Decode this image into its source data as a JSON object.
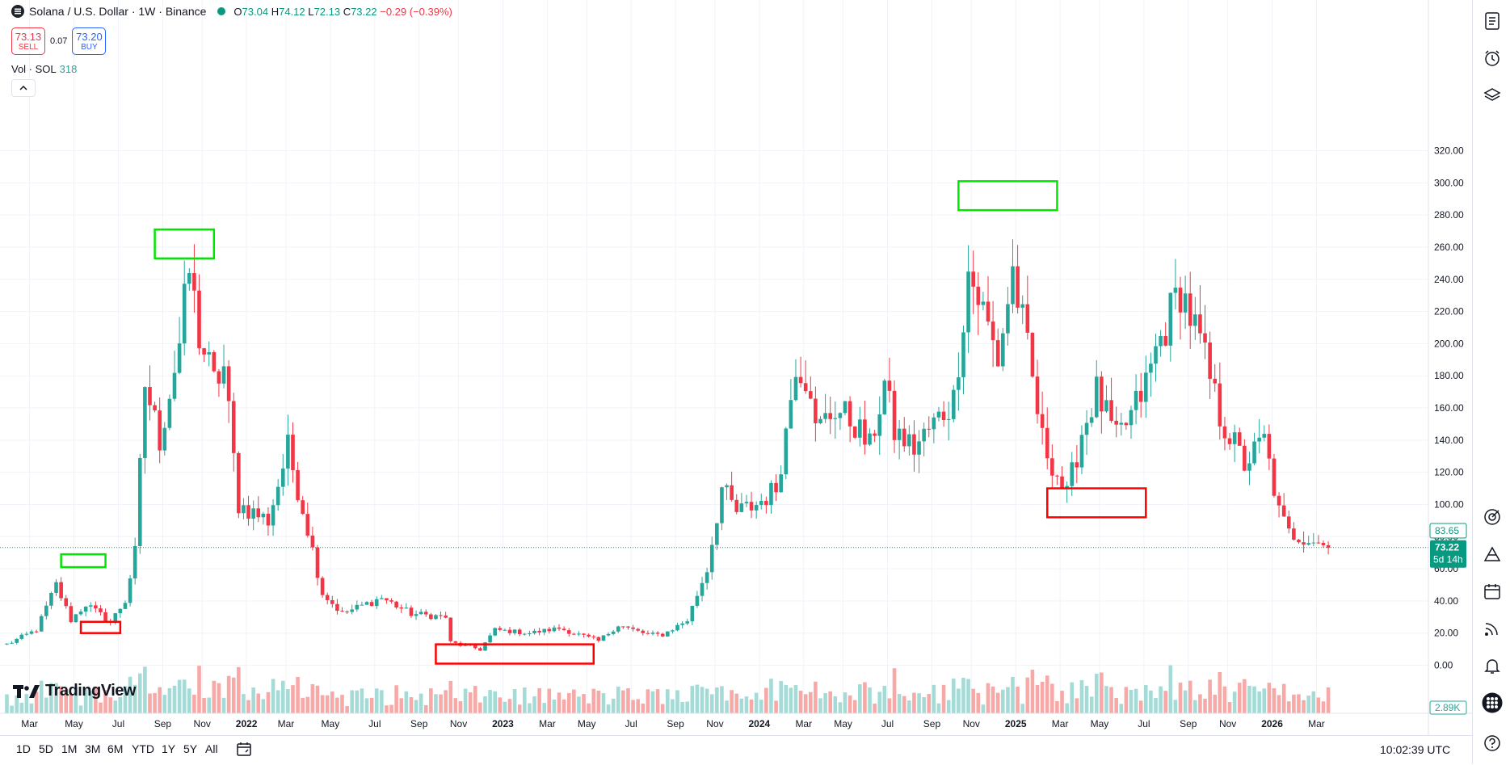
{
  "header": {
    "symbol": "Solana / U.S. Dollar · 1W · Binance",
    "open_label": "O",
    "open": "73.04",
    "high_label": "H",
    "high": "74.12",
    "low_label": "L",
    "low": "72.13",
    "close_label": "C",
    "close": "73.22",
    "change": "−0.29 (−0.39%)"
  },
  "trade": {
    "sell_price": "73.13",
    "sell_label": "SELL",
    "spread": "0.07",
    "buy_price": "73.20",
    "buy_label": "BUY"
  },
  "volume": {
    "label": "Vol · SOL",
    "value": "318"
  },
  "logo": {
    "text": "TradingView"
  },
  "price_tags": {
    "last_close": "73.22",
    "countdown": "5d 14h",
    "marker": "83.65",
    "volume": "2.89K"
  },
  "bottom_bar": {
    "ranges": [
      "1D",
      "5D",
      "1M",
      "3M",
      "6M",
      "YTD",
      "1Y",
      "5Y",
      "All"
    ],
    "clock": "10:02:39 UTC"
  },
  "colors": {
    "up": "#26a69a",
    "down": "#f23645",
    "box_green": "#00e600",
    "box_red": "#ff0000"
  },
  "icons": [
    "symbol-icon",
    "watchlist-icon",
    "alerts-clock-icon",
    "layers-icon",
    "target-icon",
    "pyramid-icon",
    "calendar-icon",
    "signal-icon",
    "bell-icon",
    "grid-apps-icon",
    "help-icon",
    "settings-icon"
  ],
  "chart_data": {
    "type": "candlestick",
    "interval": "1W",
    "ylim": [
      0,
      320
    ],
    "y_ticks": [
      "0.00",
      "20.00",
      "40.00",
      "60.00",
      "80.00",
      "100.00",
      "120.00",
      "140.00",
      "160.00",
      "180.00",
      "200.00",
      "220.00",
      "240.00",
      "260.00",
      "280.00",
      "300.00",
      "320.00"
    ],
    "x_ticks": [
      "Mar",
      "May",
      "Jul",
      "Sep",
      "Nov",
      "2022",
      "Mar",
      "May",
      "Jul",
      "Sep",
      "Nov",
      "2023",
      "Mar",
      "May",
      "Jul",
      "Sep",
      "Nov",
      "2024",
      "Mar",
      "May",
      "Jul",
      "Sep",
      "Nov",
      "2025",
      "Mar",
      "May",
      "Jul",
      "Sep",
      "Nov",
      "2026",
      "Mar"
    ],
    "grid": true,
    "legend": "top-left",
    "anchors": [
      {
        "d": "2021-02-22",
        "p": 13
      },
      {
        "d": "2021-04-05",
        "p": 22
      },
      {
        "d": "2021-05-03",
        "p": 50
      },
      {
        "d": "2021-05-24",
        "p": 28
      },
      {
        "d": "2021-06-14",
        "p": 38
      },
      {
        "d": "2021-07-19",
        "p": 27
      },
      {
        "d": "2021-08-09",
        "p": 40
      },
      {
        "d": "2021-08-23",
        "p": 70
      },
      {
        "d": "2021-09-06",
        "p": 175
      },
      {
        "d": "2021-09-27",
        "p": 140
      },
      {
        "d": "2021-10-25",
        "p": 200
      },
      {
        "d": "2021-11-08",
        "p": 245
      },
      {
        "d": "2021-11-22",
        "p": 205
      },
      {
        "d": "2021-12-13",
        "p": 175
      },
      {
        "d": "2021-12-27",
        "p": 185
      },
      {
        "d": "2022-01-17",
        "p": 100
      },
      {
        "d": "2022-02-07",
        "p": 95
      },
      {
        "d": "2022-02-28",
        "p": 90
      },
      {
        "d": "2022-03-28",
        "p": 135
      },
      {
        "d": "2022-04-25",
        "p": 85
      },
      {
        "d": "2022-05-16",
        "p": 45
      },
      {
        "d": "2022-06-13",
        "p": 32
      },
      {
        "d": "2022-08-08",
        "p": 42
      },
      {
        "d": "2022-09-19",
        "p": 32
      },
      {
        "d": "2022-11-07",
        "p": 30
      },
      {
        "d": "2022-11-14",
        "p": 14
      },
      {
        "d": "2022-12-26",
        "p": 10
      },
      {
        "d": "2023-01-16",
        "p": 22
      },
      {
        "d": "2023-03-06",
        "p": 20
      },
      {
        "d": "2023-04-17",
        "p": 23
      },
      {
        "d": "2023-06-12",
        "p": 15
      },
      {
        "d": "2023-07-10",
        "p": 25
      },
      {
        "d": "2023-08-21",
        "p": 19
      },
      {
        "d": "2023-09-11",
        "p": 19
      },
      {
        "d": "2023-10-16",
        "p": 28
      },
      {
        "d": "2023-11-13",
        "p": 60
      },
      {
        "d": "2023-12-04",
        "p": 110
      },
      {
        "d": "2023-12-25",
        "p": 95
      },
      {
        "d": "2024-01-22",
        "p": 100
      },
      {
        "d": "2024-02-19",
        "p": 110
      },
      {
        "d": "2024-03-04",
        "p": 145
      },
      {
        "d": "2024-03-18",
        "p": 190
      },
      {
        "d": "2024-04-08",
        "p": 175
      },
      {
        "d": "2024-04-15",
        "p": 145
      },
      {
        "d": "2024-05-13",
        "p": 160
      },
      {
        "d": "2024-06-10",
        "p": 150
      },
      {
        "d": "2024-07-01",
        "p": 135
      },
      {
        "d": "2024-07-22",
        "p": 175
      },
      {
        "d": "2024-08-05",
        "p": 145
      },
      {
        "d": "2024-09-02",
        "p": 135
      },
      {
        "d": "2024-09-30",
        "p": 150
      },
      {
        "d": "2024-10-28",
        "p": 165
      },
      {
        "d": "2024-11-18",
        "p": 245
      },
      {
        "d": "2024-12-09",
        "p": 220
      },
      {
        "d": "2024-12-30",
        "p": 190
      },
      {
        "d": "2025-01-20",
        "p": 245
      },
      {
        "d": "2025-02-10",
        "p": 195
      },
      {
        "d": "2025-03-03",
        "p": 140
      },
      {
        "d": "2025-04-07",
        "p": 105
      },
      {
        "d": "2025-04-28",
        "p": 145
      },
      {
        "d": "2025-05-19",
        "p": 170
      },
      {
        "d": "2025-06-16",
        "p": 140
      },
      {
        "d": "2025-07-07",
        "p": 155
      },
      {
        "d": "2025-07-28",
        "p": 175
      },
      {
        "d": "2025-08-11",
        "p": 195
      },
      {
        "d": "2025-09-15",
        "p": 235
      },
      {
        "d": "2025-10-13",
        "p": 200
      },
      {
        "d": "2025-11-10",
        "p": 155
      },
      {
        "d": "2025-12-15",
        "p": 125
      },
      {
        "d": "2026-01-12",
        "p": 140
      },
      {
        "d": "2026-02-02",
        "p": 95
      },
      {
        "d": "2026-02-16",
        "p": 82
      },
      {
        "d": "2026-03-23",
        "p": 78
      },
      {
        "d": "2026-04-13",
        "p": 73
      }
    ],
    "annotation_boxes": [
      {
        "color": "green",
        "d1": "2021-05-10",
        "d2": "2021-07-12",
        "p1": 61,
        "p2": 69
      },
      {
        "color": "red",
        "d1": "2021-06-07",
        "d2": "2021-08-02",
        "p1": 20,
        "p2": 27
      },
      {
        "color": "green",
        "d1": "2021-09-20",
        "d2": "2021-12-13",
        "p1": 253,
        "p2": 271
      },
      {
        "color": "red",
        "d1": "2022-10-24",
        "d2": "2023-06-05",
        "p1": 1,
        "p2": 13
      },
      {
        "color": "green",
        "d1": "2024-11-04",
        "d2": "2025-03-24",
        "p1": 283,
        "p2": 301
      },
      {
        "color": "red",
        "d1": "2025-03-10",
        "d2": "2025-07-28",
        "p1": 92,
        "p2": 110
      }
    ]
  }
}
